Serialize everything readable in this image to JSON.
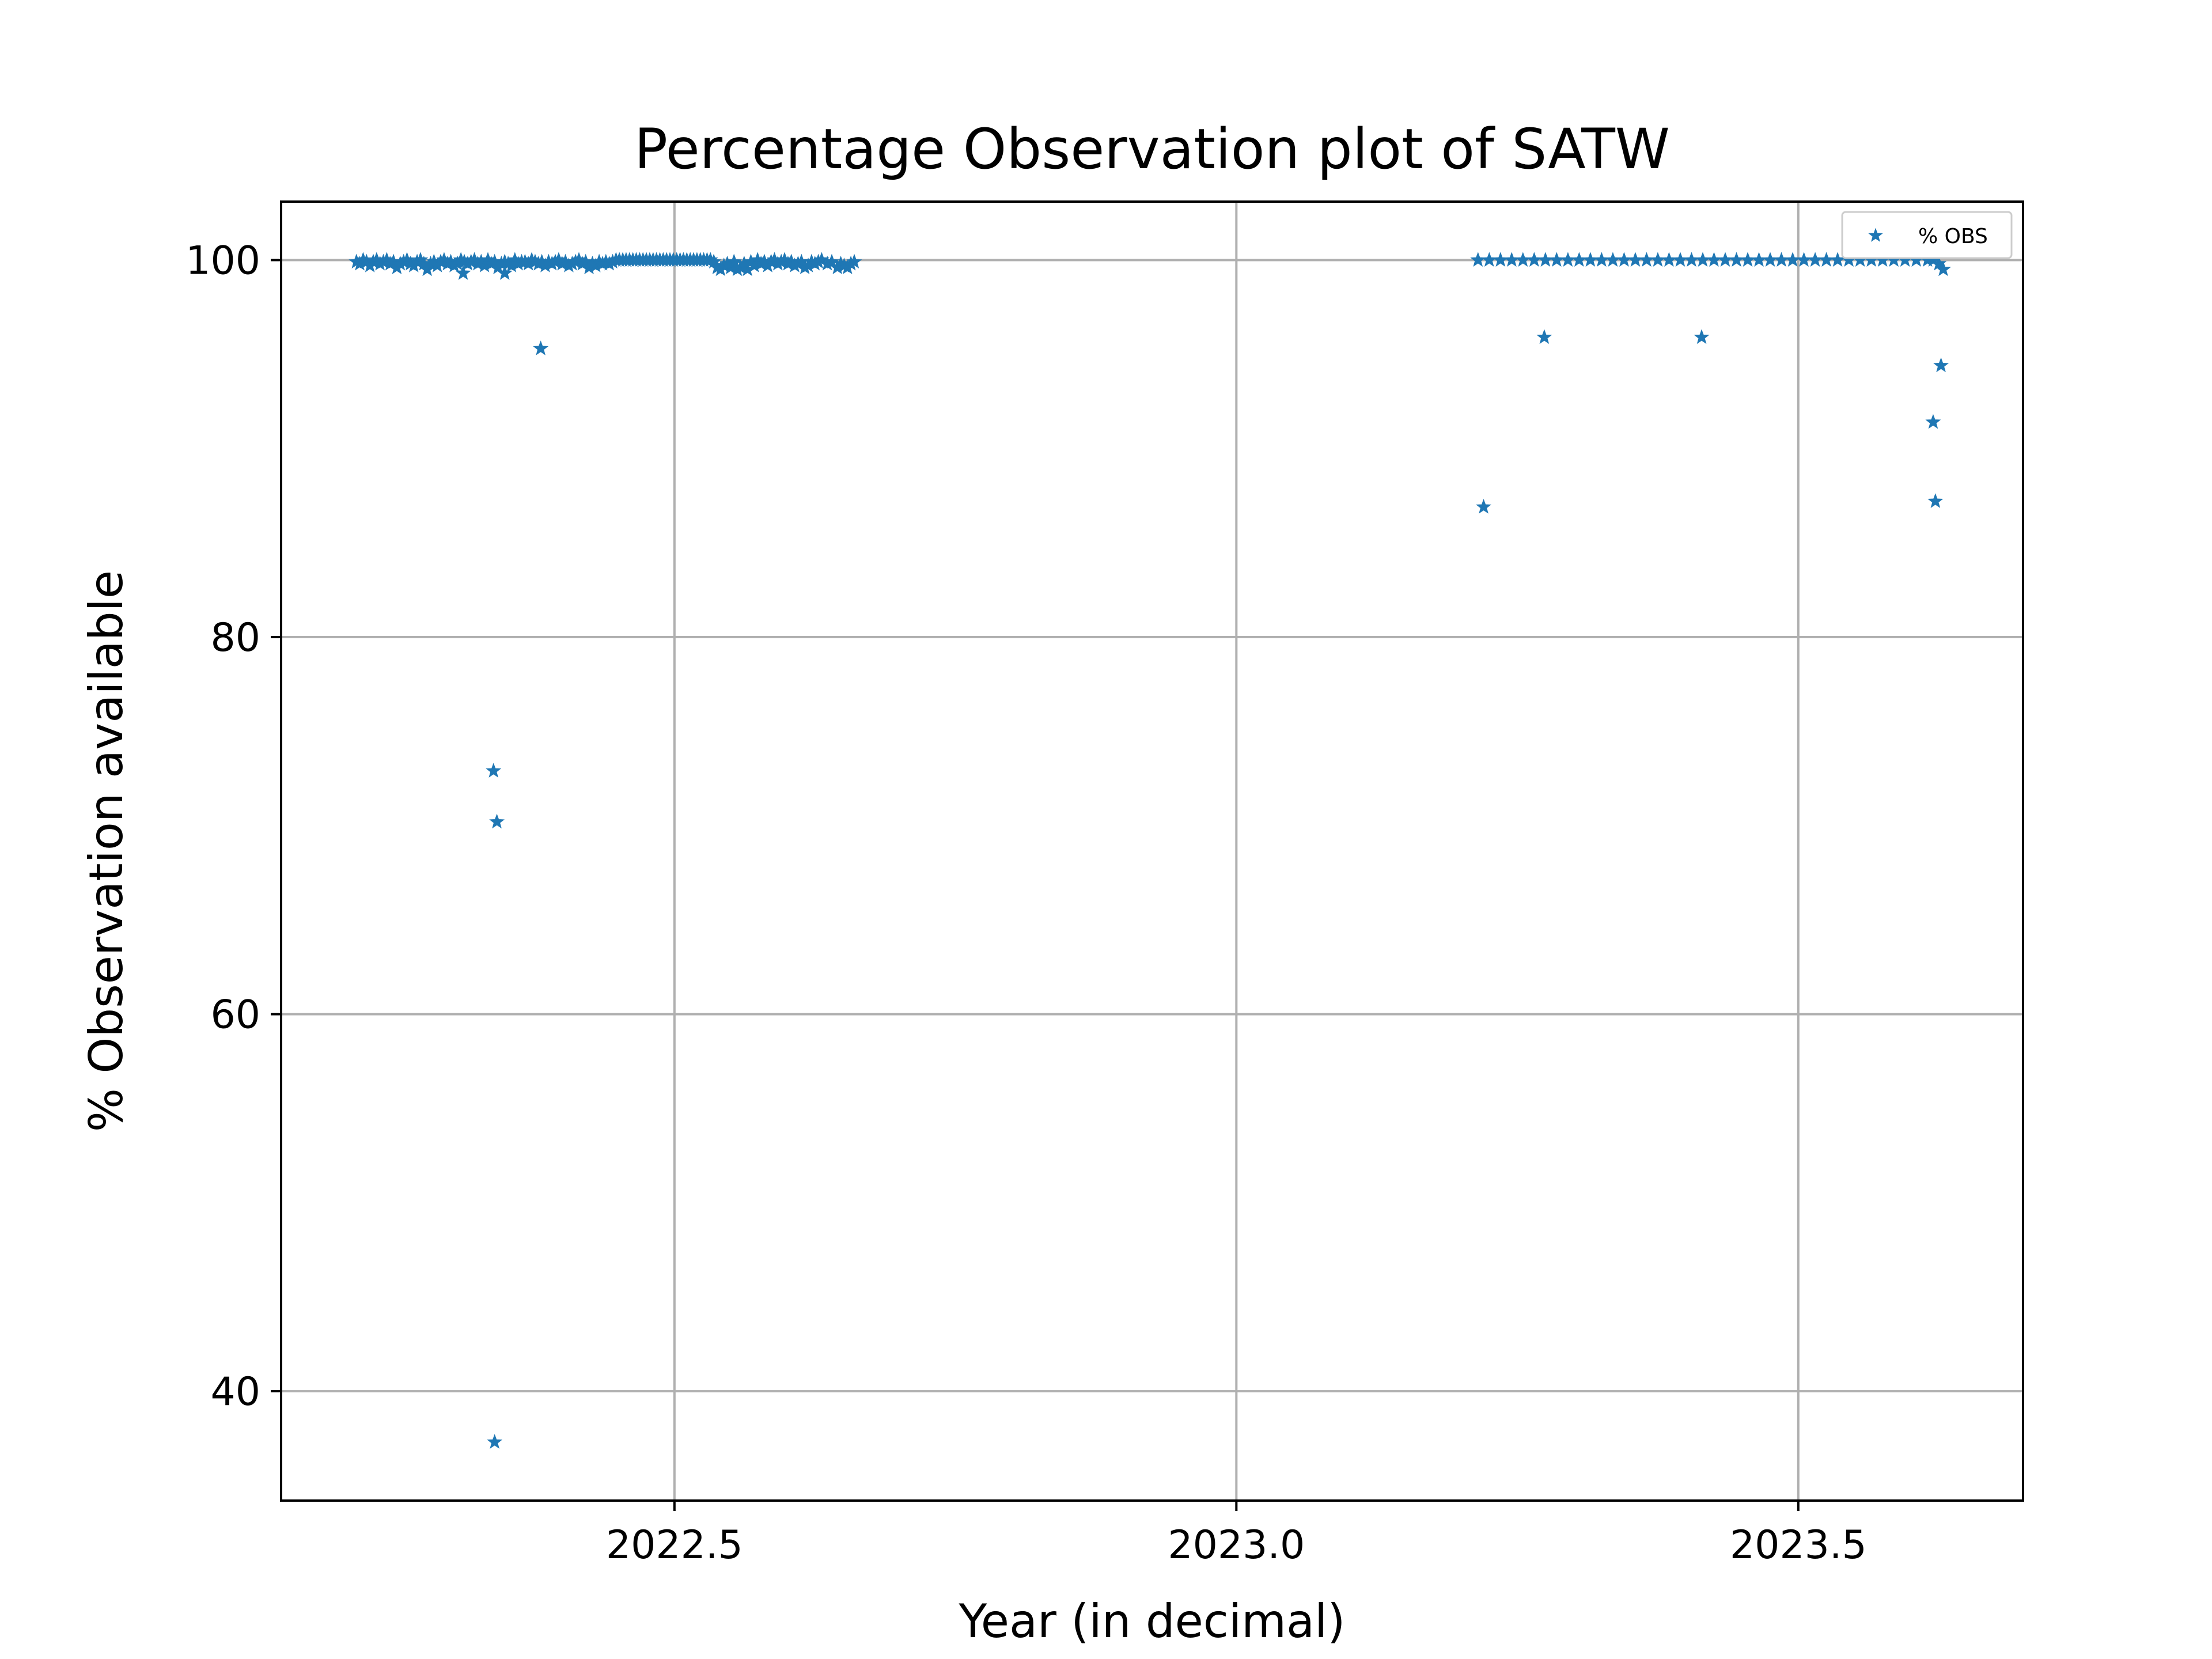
{
  "chart_data": {
    "type": "scatter",
    "title": "Percentage Observation plot of SATW",
    "xlabel": "Year (in decimal)",
    "ylabel": "% Observation available",
    "xlim": [
      2022.15,
      2023.7
    ],
    "ylim": [
      34.2,
      103.1
    ],
    "xticks": [
      2022.5,
      2023.0,
      2023.5
    ],
    "xtick_labels": [
      "2022.5",
      "2023.0",
      "2023.5"
    ],
    "yticks": [
      40,
      60,
      80,
      100
    ],
    "ytick_labels": [
      "40",
      "60",
      "80",
      "100"
    ],
    "grid": true,
    "legend_position": "top-right",
    "marker": "star",
    "series": [
      {
        "name": "% OBS",
        "color": "#1f77b4",
        "points": [
          [
            2022.217,
            99.9
          ],
          [
            2022.22,
            99.8
          ],
          [
            2022.223,
            100.0
          ],
          [
            2022.226,
            99.9
          ],
          [
            2022.229,
            99.7
          ],
          [
            2022.232,
            99.9
          ],
          [
            2022.235,
            100.0
          ],
          [
            2022.238,
            99.8
          ],
          [
            2022.241,
            99.9
          ],
          [
            2022.244,
            100.0
          ],
          [
            2022.247,
            99.8
          ],
          [
            2022.25,
            99.9
          ],
          [
            2022.253,
            99.6
          ],
          [
            2022.256,
            99.8
          ],
          [
            2022.259,
            99.9
          ],
          [
            2022.262,
            100.0
          ],
          [
            2022.265,
            99.8
          ],
          [
            2022.268,
            99.7
          ],
          [
            2022.271,
            99.9
          ],
          [
            2022.274,
            100.0
          ],
          [
            2022.277,
            99.8
          ],
          [
            2022.28,
            99.5
          ],
          [
            2022.283,
            99.8
          ],
          [
            2022.286,
            99.9
          ],
          [
            2022.289,
            99.7
          ],
          [
            2022.292,
            99.9
          ],
          [
            2022.295,
            100.0
          ],
          [
            2022.298,
            99.8
          ],
          [
            2022.301,
            99.9
          ],
          [
            2022.304,
            99.7
          ],
          [
            2022.307,
            99.8
          ],
          [
            2022.31,
            100.0
          ],
          [
            2022.313,
            99.9
          ],
          [
            2022.316,
            99.8
          ],
          [
            2022.319,
            99.9
          ],
          [
            2022.322,
            100.0
          ],
          [
            2022.325,
            99.8
          ],
          [
            2022.328,
            99.9
          ],
          [
            2022.331,
            99.7
          ],
          [
            2022.334,
            100.0
          ],
          [
            2022.337,
            99.8
          ],
          [
            2022.34,
            99.9
          ],
          [
            2022.343,
            99.6
          ],
          [
            2022.346,
            99.8
          ],
          [
            2022.349,
            99.9
          ],
          [
            2022.352,
            99.8
          ],
          [
            2022.355,
            99.7
          ],
          [
            2022.358,
            100.0
          ],
          [
            2022.361,
            99.8
          ],
          [
            2022.364,
            99.9
          ],
          [
            2022.367,
            99.9
          ],
          [
            2022.37,
            99.8
          ],
          [
            2022.373,
            100.0
          ],
          [
            2022.376,
            99.9
          ],
          [
            2022.379,
            99.8
          ],
          [
            2022.382,
            99.9
          ],
          [
            2022.385,
            99.7
          ],
          [
            2022.388,
            99.9
          ],
          [
            2022.391,
            99.8
          ],
          [
            2022.394,
            99.9
          ],
          [
            2022.397,
            100.0
          ],
          [
            2022.4,
            99.8
          ],
          [
            2022.403,
            99.9
          ],
          [
            2022.406,
            99.7
          ],
          [
            2022.409,
            99.8
          ],
          [
            2022.412,
            99.9
          ],
          [
            2022.415,
            100.0
          ],
          [
            2022.418,
            99.8
          ],
          [
            2022.421,
            99.9
          ],
          [
            2022.424,
            99.6
          ],
          [
            2022.427,
            99.8
          ],
          [
            2022.43,
            99.7
          ],
          [
            2022.433,
            99.9
          ],
          [
            2022.436,
            99.8
          ],
          [
            2022.439,
            99.9
          ],
          [
            2022.442,
            99.8
          ],
          [
            2022.445,
            99.9
          ],
          [
            2022.448,
            100.0
          ],
          [
            2022.451,
            100.0
          ],
          [
            2022.454,
            100.0
          ],
          [
            2022.457,
            100.0
          ],
          [
            2022.46,
            100.0
          ],
          [
            2022.463,
            100.0
          ],
          [
            2022.466,
            100.0
          ],
          [
            2022.469,
            100.0
          ],
          [
            2022.472,
            100.0
          ],
          [
            2022.475,
            100.0
          ],
          [
            2022.478,
            100.0
          ],
          [
            2022.481,
            100.0
          ],
          [
            2022.484,
            100.0
          ],
          [
            2022.487,
            100.0
          ],
          [
            2022.49,
            100.0
          ],
          [
            2022.493,
            100.0
          ],
          [
            2022.496,
            100.0
          ],
          [
            2022.499,
            100.0
          ],
          [
            2022.502,
            100.0
          ],
          [
            2022.505,
            100.0
          ],
          [
            2022.508,
            100.0
          ],
          [
            2022.511,
            100.0
          ],
          [
            2022.514,
            100.0
          ],
          [
            2022.517,
            100.0
          ],
          [
            2022.52,
            100.0
          ],
          [
            2022.523,
            100.0
          ],
          [
            2022.526,
            100.0
          ],
          [
            2022.529,
            100.0
          ],
          [
            2022.532,
            100.0
          ],
          [
            2022.535,
            99.9
          ],
          [
            2022.538,
            99.6
          ],
          [
            2022.541,
            99.5
          ],
          [
            2022.544,
            99.7
          ],
          [
            2022.547,
            99.8
          ],
          [
            2022.55,
            99.6
          ],
          [
            2022.553,
            99.9
          ],
          [
            2022.556,
            99.5
          ],
          [
            2022.559,
            99.6
          ],
          [
            2022.562,
            99.8
          ],
          [
            2022.565,
            99.5
          ],
          [
            2022.568,
            99.9
          ],
          [
            2022.571,
            99.7
          ],
          [
            2022.574,
            100.0
          ],
          [
            2022.577,
            99.8
          ],
          [
            2022.58,
            99.9
          ],
          [
            2022.583,
            99.7
          ],
          [
            2022.586,
            99.9
          ],
          [
            2022.589,
            100.0
          ],
          [
            2022.592,
            99.8
          ],
          [
            2022.595,
            99.9
          ],
          [
            2022.598,
            100.0
          ],
          [
            2022.601,
            99.8
          ],
          [
            2022.604,
            99.9
          ],
          [
            2022.607,
            99.7
          ],
          [
            2022.61,
            99.8
          ],
          [
            2022.613,
            99.9
          ],
          [
            2022.616,
            99.6
          ],
          [
            2022.619,
            99.7
          ],
          [
            2022.622,
            99.9
          ],
          [
            2022.625,
            99.8
          ],
          [
            2022.628,
            99.9
          ],
          [
            2022.631,
            100.0
          ],
          [
            2022.636,
            99.8
          ],
          [
            2022.64,
            99.9
          ],
          [
            2022.645,
            99.6
          ],
          [
            2022.648,
            99.8
          ],
          [
            2022.651,
            99.7
          ],
          [
            2022.654,
            99.6
          ],
          [
            2022.657,
            99.8
          ],
          [
            2022.66,
            99.9
          ],
          [
            2022.312,
            99.3
          ],
          [
            2022.349,
            99.3
          ],
          [
            2022.381,
            95.3
          ],
          [
            2022.339,
            72.9
          ],
          [
            2022.342,
            70.2
          ],
          [
            2022.34,
            37.3
          ],
          [
            2023.215,
            100.0
          ],
          [
            2023.225,
            100.0
          ],
          [
            2023.235,
            100.0
          ],
          [
            2023.245,
            100.0
          ],
          [
            2023.255,
            100.0
          ],
          [
            2023.265,
            100.0
          ],
          [
            2023.275,
            100.0
          ],
          [
            2023.285,
            100.0
          ],
          [
            2023.295,
            100.0
          ],
          [
            2023.305,
            100.0
          ],
          [
            2023.315,
            100.0
          ],
          [
            2023.325,
            100.0
          ],
          [
            2023.335,
            100.0
          ],
          [
            2023.345,
            100.0
          ],
          [
            2023.355,
            100.0
          ],
          [
            2023.365,
            100.0
          ],
          [
            2023.375,
            100.0
          ],
          [
            2023.385,
            100.0
          ],
          [
            2023.395,
            100.0
          ],
          [
            2023.405,
            100.0
          ],
          [
            2023.415,
            100.0
          ],
          [
            2023.425,
            100.0
          ],
          [
            2023.435,
            100.0
          ],
          [
            2023.445,
            100.0
          ],
          [
            2023.455,
            100.0
          ],
          [
            2023.465,
            100.0
          ],
          [
            2023.475,
            100.0
          ],
          [
            2023.485,
            100.0
          ],
          [
            2023.495,
            100.0
          ],
          [
            2023.505,
            100.0
          ],
          [
            2023.515,
            100.0
          ],
          [
            2023.525,
            100.0
          ],
          [
            2023.535,
            100.0
          ],
          [
            2023.545,
            100.0
          ],
          [
            2023.555,
            100.0
          ],
          [
            2023.565,
            100.0
          ],
          [
            2023.575,
            100.0
          ],
          [
            2023.585,
            100.0
          ],
          [
            2023.595,
            100.0
          ],
          [
            2023.605,
            100.0
          ],
          [
            2023.615,
            100.0
          ],
          [
            2023.62,
            100.0
          ],
          [
            2023.625,
            99.8
          ],
          [
            2023.629,
            99.5
          ],
          [
            2023.22,
            86.9
          ],
          [
            2023.274,
            95.9
          ],
          [
            2023.414,
            95.9
          ],
          [
            2023.62,
            91.4
          ],
          [
            2023.622,
            87.2
          ],
          [
            2023.627,
            94.4
          ]
        ]
      }
    ]
  }
}
